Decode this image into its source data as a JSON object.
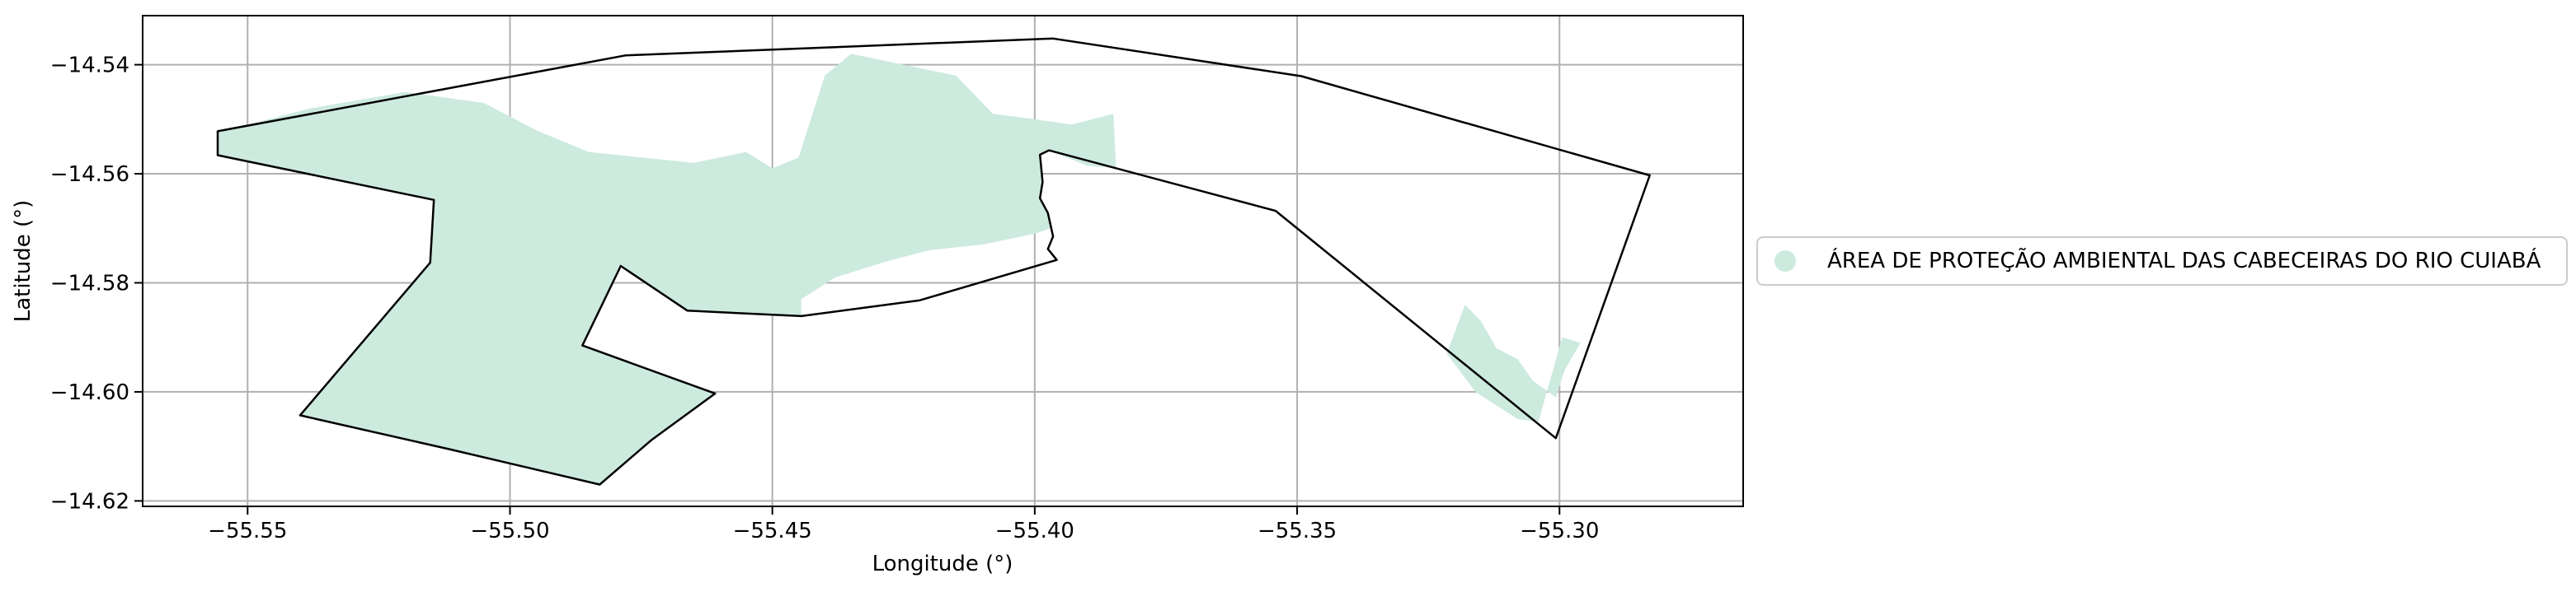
{
  "chart_data": {
    "type": "map",
    "title": "",
    "xlabel": "Longitude (°)",
    "ylabel": "Latitude (°)",
    "xlim": [
      -55.57,
      -55.265
    ],
    "ylim": [
      -14.621,
      -14.531
    ],
    "xticks": [
      -55.55,
      -55.5,
      -55.45,
      -55.4,
      -55.35,
      -55.3
    ],
    "yticks": [
      -14.54,
      -14.56,
      -14.58,
      -14.6,
      -14.62
    ],
    "xtick_labels": [
      "−55.55",
      "−55.50",
      "−55.45",
      "−55.40",
      "−55.35",
      "−55.30"
    ],
    "ytick_labels": [
      "−14.54",
      "−14.56",
      "−14.58",
      "−14.60",
      "−14.62"
    ],
    "grid": true,
    "legend_position": "outside-right",
    "legend": [
      {
        "label": "ÁREA DE PROTEÇÃO AMBIENTAL DAS CABECEIRAS DO RIO CUIABÁ",
        "color": "#cdeade"
      }
    ],
    "boundary_polygon": [
      [
        -55.5557,
        -14.5522
      ],
      [
        -55.478,
        -14.5383
      ],
      [
        -55.3965,
        -14.5352
      ],
      [
        -55.3492,
        -14.5421
      ],
      [
        -55.2828,
        -14.5603
      ],
      [
        -55.3007,
        -14.6085
      ],
      [
        -55.3541,
        -14.5668
      ],
      [
        -55.3973,
        -14.5557
      ],
      [
        -55.399,
        -14.5565
      ],
      [
        -55.3985,
        -14.5615
      ],
      [
        -55.399,
        -14.5645
      ],
      [
        -55.3975,
        -14.5672
      ],
      [
        -55.3965,
        -14.5715
      ],
      [
        -55.3975,
        -14.5738
      ],
      [
        -55.3958,
        -14.5758
      ],
      [
        -55.4219,
        -14.5832
      ],
      [
        -55.4445,
        -14.5861
      ],
      [
        -55.4662,
        -14.5851
      ],
      [
        -55.4789,
        -14.5769
      ],
      [
        -55.4862,
        -14.5915
      ],
      [
        -55.4609,
        -14.6003
      ],
      [
        -55.473,
        -14.6088
      ],
      [
        -55.4829,
        -14.617
      ],
      [
        -55.5116,
        -14.6105
      ],
      [
        -55.54,
        -14.6043
      ],
      [
        -55.5152,
        -14.5763
      ],
      [
        -55.5145,
        -14.5648
      ],
      [
        -55.5557,
        -14.5566
      ]
    ],
    "protected_area_polygons": [
      [
        [
          -55.5557,
          -14.5522
        ],
        [
          -55.548,
          -14.5505
        ],
        [
          -55.538,
          -14.548
        ],
        [
          -55.52,
          -14.545
        ],
        [
          -55.505,
          -14.547
        ],
        [
          -55.495,
          -14.552
        ],
        [
          -55.485,
          -14.556
        ],
        [
          -55.475,
          -14.557
        ],
        [
          -55.465,
          -14.558
        ],
        [
          -55.455,
          -14.556
        ],
        [
          -55.45,
          -14.559
        ],
        [
          -55.445,
          -14.557
        ],
        [
          -55.44,
          -14.542
        ],
        [
          -55.435,
          -14.538
        ],
        [
          -55.425,
          -14.54
        ],
        [
          -55.415,
          -14.542
        ],
        [
          -55.408,
          -14.549
        ],
        [
          -55.4,
          -14.55
        ],
        [
          -55.393,
          -14.551
        ],
        [
          -55.385,
          -14.549
        ],
        [
          -55.3845,
          -14.559
        ],
        [
          -55.39,
          -14.5585
        ],
        [
          -55.3973,
          -14.5557
        ],
        [
          -55.399,
          -14.5565
        ],
        [
          -55.3985,
          -14.5615
        ],
        [
          -55.399,
          -14.5645
        ],
        [
          -55.3975,
          -14.5672
        ],
        [
          -55.397,
          -14.57
        ],
        [
          -55.4,
          -14.571
        ],
        [
          -55.41,
          -14.573
        ],
        [
          -55.42,
          -14.574
        ],
        [
          -55.428,
          -14.576
        ],
        [
          -55.438,
          -14.579
        ],
        [
          -55.4445,
          -14.583
        ],
        [
          -55.4445,
          -14.5861
        ],
        [
          -55.4662,
          -14.5851
        ],
        [
          -55.4789,
          -14.5769
        ],
        [
          -55.4862,
          -14.5915
        ],
        [
          -55.4609,
          -14.6003
        ],
        [
          -55.473,
          -14.6088
        ],
        [
          -55.4829,
          -14.617
        ],
        [
          -55.5116,
          -14.6105
        ],
        [
          -55.54,
          -14.6043
        ],
        [
          -55.5152,
          -14.5763
        ],
        [
          -55.5145,
          -14.5648
        ],
        [
          -55.5557,
          -14.5566
        ]
      ],
      [
        [
          -55.318,
          -14.584
        ],
        [
          -55.315,
          -14.587
        ],
        [
          -55.312,
          -14.592
        ],
        [
          -55.308,
          -14.594
        ],
        [
          -55.305,
          -14.598
        ],
        [
          -55.3007,
          -14.601
        ],
        [
          -55.299,
          -14.596
        ],
        [
          -55.296,
          -14.591
        ],
        [
          -55.2995,
          -14.59
        ],
        [
          -55.304,
          -14.6055
        ],
        [
          -55.308,
          -14.605
        ],
        [
          -55.316,
          -14.6
        ],
        [
          -55.3215,
          -14.593
        ]
      ]
    ]
  }
}
